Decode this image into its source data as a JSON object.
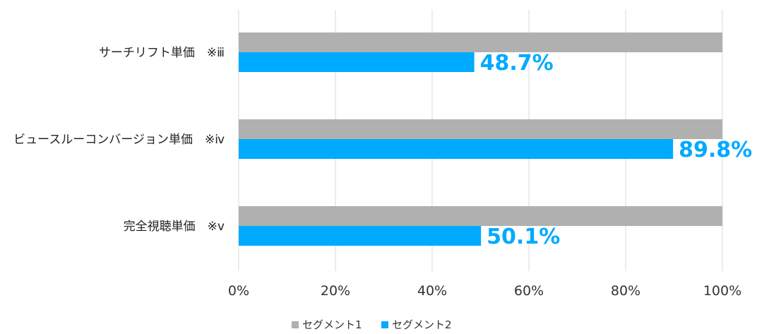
{
  "chart_data": {
    "type": "bar",
    "orientation": "horizontal",
    "title": "",
    "xlabel": "",
    "ylabel": "",
    "categories": [
      "サーチリフト単価　※ⅲ",
      "ビュースルーコンバージョン単価　※ⅳ",
      "完全視聴単価　※ⅴ"
    ],
    "series": [
      {
        "name": "セグメント1",
        "values": [
          100,
          100,
          100
        ],
        "color": "#b0b0b0"
      },
      {
        "name": "セグメント2",
        "values": [
          48.7,
          89.8,
          50.1
        ],
        "color": "#00aaff"
      }
    ],
    "data_labels": {
      "series_index": 1,
      "labels": [
        "48.7%",
        "89.8%",
        "50.1%"
      ],
      "color": "#00aaff"
    },
    "xlim": [
      0,
      100
    ],
    "x_ticks": [
      0,
      20,
      40,
      60,
      80,
      100
    ],
    "x_tick_labels": [
      "0%",
      "20%",
      "40%",
      "60%",
      "80%",
      "100%"
    ],
    "grid": "vertical",
    "grid_color": "#d9d9d9",
    "legend": {
      "position": "bottom-center",
      "entries": [
        "セグメント1",
        "セグメント2"
      ]
    }
  }
}
